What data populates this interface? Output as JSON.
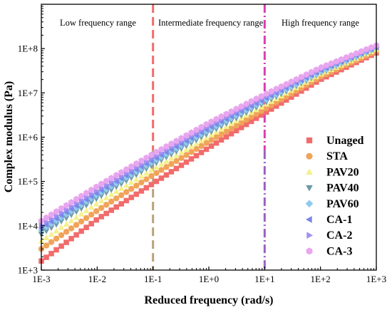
{
  "chart_data": {
    "type": "scatter",
    "xlabel": "Reduced frequency (rad/s)",
    "ylabel": "Complex modulus (Pa)",
    "xscale": "log",
    "yscale": "log",
    "xlim": [
      0.001,
      1000
    ],
    "ylim": [
      1000,
      1000000000
    ],
    "x_ticks": [
      0.001,
      0.01,
      0.1,
      1,
      10,
      100,
      1000
    ],
    "x_tick_labels": [
      "1E-3",
      "1E-2",
      "1E-1",
      "1E+0",
      "1E+1",
      "1E+2",
      "1E+3"
    ],
    "y_ticks": [
      1000,
      10000,
      100000,
      1000000,
      10000000,
      100000000
    ],
    "y_tick_labels": [
      "1E+3",
      "1E+4",
      "1E+5",
      "1E+6",
      "1E+7",
      "1E+8"
    ],
    "grid": false,
    "legend_position": "lower-right",
    "vertical_lines": [
      {
        "x": 0.1,
        "style": "dashed",
        "colors": [
          "#f26b6b",
          "#b9a27a"
        ]
      },
      {
        "x": 10,
        "style": "dash-dot",
        "colors": [
          "#d63fb4",
          "#9c5fc4"
        ]
      }
    ],
    "region_labels": [
      "Low frequency range",
      "Intermediate frequency range",
      "High frequency range"
    ],
    "series": [
      {
        "name": "Unaged",
        "marker": "square",
        "color": "#f26b6b",
        "points": [
          [
            0.001,
            1600
          ],
          [
            0.01,
            14000
          ],
          [
            0.1,
            90000
          ],
          [
            1,
            580000
          ],
          [
            10,
            3500000
          ],
          [
            100,
            20000000
          ],
          [
            1000,
            80000000
          ]
        ]
      },
      {
        "name": "STA",
        "marker": "circle",
        "color": "#f0a35a",
        "points": [
          [
            0.001,
            3000
          ],
          [
            0.01,
            22000
          ],
          [
            0.1,
            140000
          ],
          [
            1,
            800000
          ],
          [
            10,
            4300000
          ],
          [
            100,
            23000000
          ],
          [
            1000,
            88000000
          ]
        ]
      },
      {
        "name": "PAV20",
        "marker": "triangle-up",
        "color": "#f5f08c",
        "points": [
          [
            0.001,
            4500
          ],
          [
            0.01,
            32000
          ],
          [
            0.1,
            190000
          ],
          [
            1,
            1050000
          ],
          [
            10,
            5300000
          ],
          [
            100,
            26000000
          ],
          [
            1000,
            95000000
          ]
        ]
      },
      {
        "name": "PAV40",
        "marker": "triangle-down",
        "color": "#6e9aa8",
        "points": [
          [
            0.001,
            6500
          ],
          [
            0.01,
            42000
          ],
          [
            0.1,
            240000
          ],
          [
            1,
            1250000
          ],
          [
            10,
            6000000
          ],
          [
            100,
            28000000
          ],
          [
            1000,
            100000000
          ]
        ]
      },
      {
        "name": "PAV60",
        "marker": "diamond",
        "color": "#8fc9ee",
        "points": [
          [
            0.001,
            8000
          ],
          [
            0.01,
            50000
          ],
          [
            0.1,
            280000
          ],
          [
            1,
            1450000
          ],
          [
            10,
            6800000
          ],
          [
            100,
            30000000
          ],
          [
            1000,
            105000000
          ]
        ]
      },
      {
        "name": "CA-1",
        "marker": "triangle-left",
        "color": "#7b86e8",
        "points": [
          [
            0.001,
            9000
          ],
          [
            0.01,
            56000
          ],
          [
            0.1,
            310000
          ],
          [
            1,
            1600000
          ],
          [
            10,
            7300000
          ],
          [
            100,
            32000000
          ],
          [
            1000,
            108000000
          ]
        ]
      },
      {
        "name": "CA-2",
        "marker": "triangle-right",
        "color": "#a18ff0",
        "points": [
          [
            0.001,
            10500
          ],
          [
            0.01,
            64000
          ],
          [
            0.1,
            350000
          ],
          [
            1,
            1800000
          ],
          [
            10,
            8000000
          ],
          [
            100,
            34000000
          ],
          [
            1000,
            112000000
          ]
        ]
      },
      {
        "name": "CA-3",
        "marker": "hexagon",
        "color": "#e8a6ee",
        "points": [
          [
            0.001,
            13000
          ],
          [
            0.01,
            78000
          ],
          [
            0.1,
            420000
          ],
          [
            1,
            2100000
          ],
          [
            10,
            9200000
          ],
          [
            100,
            37000000
          ],
          [
            1000,
            118000000
          ]
        ]
      }
    ]
  }
}
